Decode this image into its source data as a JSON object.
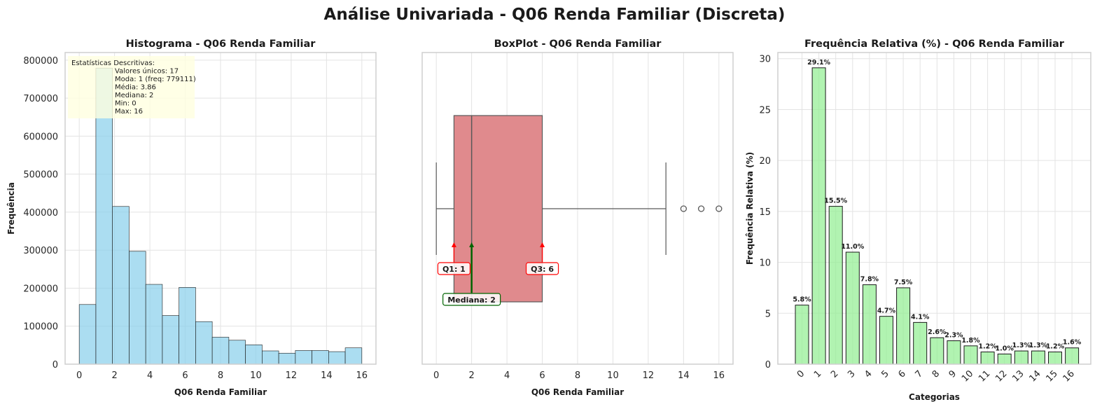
{
  "suptitle": "Análise Univariada - Q06 Renda Familiar (Discreta)",
  "chart_data": [
    {
      "type": "bar",
      "title": "Histograma - Q06 Renda Familiar",
      "xlabel": "Q06 Renda Familiar",
      "ylabel": "Frequência",
      "xlim": [
        -0.8,
        16.8
      ],
      "ylim": [
        0,
        820000
      ],
      "xticks": [
        0,
        2,
        4,
        6,
        8,
        10,
        12,
        14,
        16
      ],
      "yticks": [
        0,
        100000,
        200000,
        300000,
        400000,
        500000,
        600000,
        700000,
        800000
      ],
      "bin_edges": [
        0,
        0.9412,
        1.8824,
        2.8235,
        3.7647,
        4.7059,
        5.6471,
        6.5882,
        7.5294,
        8.4706,
        9.4118,
        10.3529,
        11.2941,
        12.2353,
        13.1765,
        14.1176,
        15.0588,
        16
      ],
      "values": [
        157000,
        779111,
        415000,
        297000,
        210000,
        128000,
        202000,
        112000,
        71000,
        63000,
        51000,
        35000,
        29000,
        36000,
        36000,
        33000,
        43000
      ],
      "color": "#87ceeb",
      "grid": true,
      "stats_box": {
        "title": "Estatísticas Descritivas:",
        "lines": [
          "Valores únicos: 17",
          "Moda: 1 (freq: 779111)",
          "Média: 3.86",
          "Mediana: 2",
          "Min: 0",
          "Max: 16"
        ],
        "placement": "top-left",
        "color": "#ffffe0"
      }
    },
    {
      "type": "box",
      "title": "BoxPlot - Q06 Renda Familiar",
      "xlabel": "Q06 Renda Familiar",
      "xlim": [
        -0.8,
        16.8
      ],
      "xticks": [
        0,
        2,
        4,
        6,
        8,
        10,
        12,
        14,
        16
      ],
      "whisker_low": 0,
      "q1": 1,
      "median": 2,
      "q3": 6,
      "whisker_high": 13,
      "outliers": [
        14,
        15,
        16
      ],
      "color": "#e08a8d",
      "grid": true,
      "annotations": [
        {
          "text": "Q1: 1",
          "x": 1,
          "color": "#ff0000"
        },
        {
          "text": "Mediana: 2",
          "x": 2,
          "color": "#006400"
        },
        {
          "text": "Q3: 6",
          "x": 6,
          "color": "#ff0000"
        }
      ]
    },
    {
      "type": "bar",
      "title": "Frequência Relativa (%) - Q06 Renda Familiar",
      "xlabel": "Categorias",
      "ylabel": "Frequência Relativa (%)",
      "ylim": [
        0,
        30.6
      ],
      "yticks": [
        0,
        5,
        10,
        15,
        20,
        25,
        30
      ],
      "categories": [
        "0",
        "1",
        "2",
        "3",
        "4",
        "5",
        "6",
        "7",
        "8",
        "9",
        "10",
        "11",
        "12",
        "13",
        "14",
        "15",
        "16"
      ],
      "values": [
        5.8,
        29.1,
        15.5,
        11.0,
        7.8,
        4.7,
        7.5,
        4.1,
        2.6,
        2.3,
        1.8,
        1.2,
        1.0,
        1.3,
        1.3,
        1.2,
        1.6
      ],
      "data_labels": [
        "5.8%",
        "29.1%",
        "15.5%",
        "11.0%",
        "7.8%",
        "4.7%",
        "7.5%",
        "4.1%",
        "2.6%",
        "2.3%",
        "1.8%",
        "1.2%",
        "1.0%",
        "1.3%",
        "1.3%",
        "1.2%",
        "1.6%"
      ],
      "color": "#90ee90",
      "grid": true
    }
  ]
}
